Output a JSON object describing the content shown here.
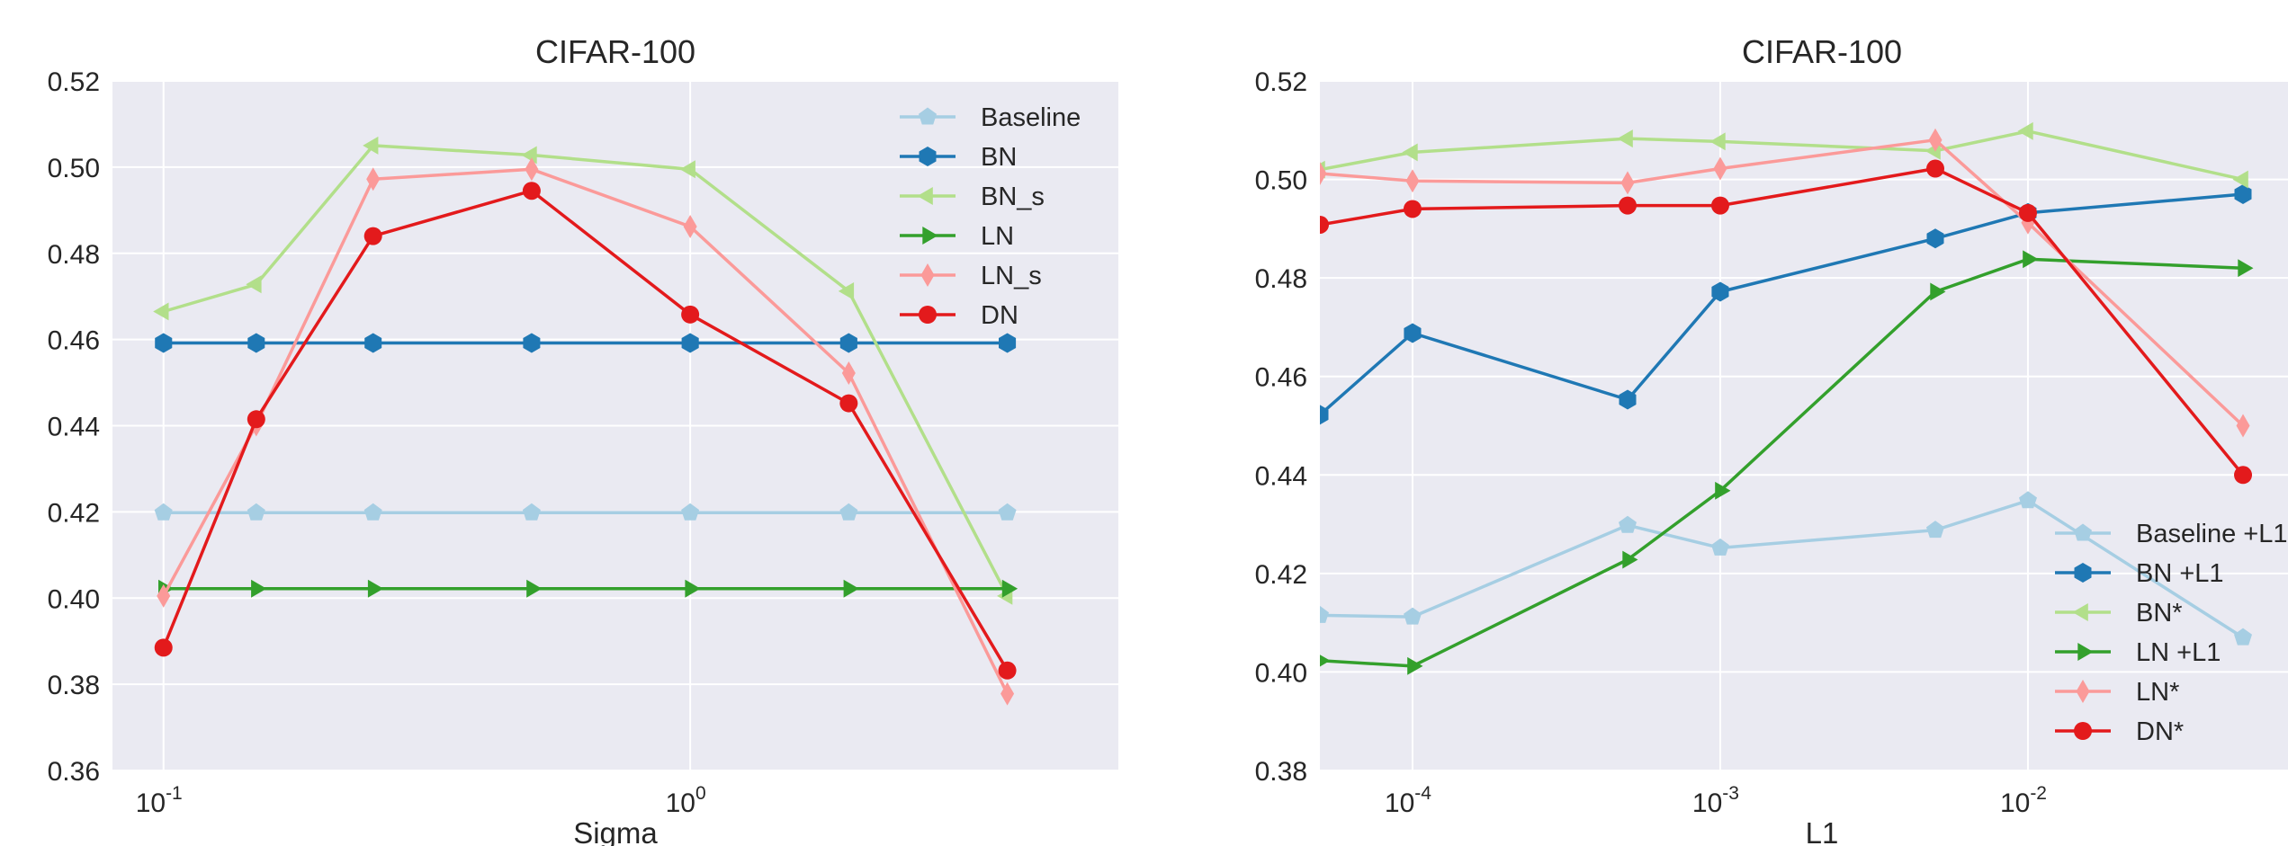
{
  "colors": {
    "background": "#ffffff",
    "plot_area": "#eaeaf2",
    "grid": "#ffffff",
    "text": "#262626"
  },
  "chart_data": [
    {
      "type": "line",
      "title": "CIFAR-100",
      "xlabel": "Sigma",
      "ylabel": "",
      "xscale": "log",
      "xlim": [
        0.08,
        6.5
      ],
      "ylim": [
        0.36,
        0.52
      ],
      "x_tick_values": [
        0.1,
        1
      ],
      "x_tick_labels": [
        {
          "base": "10",
          "exp": "-1"
        },
        {
          "base": "10",
          "exp": "0"
        }
      ],
      "y_ticks": [
        "0.36",
        "0.38",
        "0.40",
        "0.42",
        "0.44",
        "0.46",
        "0.48",
        "0.50",
        "0.52"
      ],
      "grid": true,
      "legend": "top-right",
      "x": [
        0.1,
        0.15,
        0.25,
        0.5,
        1,
        2,
        4
      ],
      "series": [
        {
          "name": "Baseline",
          "color": "#a6cee3",
          "marker": "pentagon",
          "values": [
            0.4198,
            0.4198,
            0.4198,
            0.4198,
            0.4198,
            0.4198,
            0.4198
          ]
        },
        {
          "name": "BN",
          "color": "#1f78b4",
          "marker": "hexagon",
          "values": [
            0.4592,
            0.4592,
            0.4592,
            0.4592,
            0.4592,
            0.4592,
            0.4592
          ]
        },
        {
          "name": "BN_s",
          "color": "#b2df8a",
          "marker": "triangle-left",
          "values": [
            0.4665,
            0.4728,
            0.505,
            0.5028,
            0.4995,
            0.4712,
            0.4005
          ]
        },
        {
          "name": "LN",
          "color": "#33a02c",
          "marker": "triangle-right",
          "values": [
            0.4022,
            0.4022,
            0.4022,
            0.4022,
            0.4022,
            0.4022,
            0.4022
          ]
        },
        {
          "name": "LN_s",
          "color": "#fb9a99",
          "marker": "diamond",
          "values": [
            0.4005,
            0.4402,
            0.4972,
            0.4995,
            0.4862,
            0.4522,
            0.3778
          ]
        },
        {
          "name": "DN",
          "color": "#e31a1c",
          "marker": "circle",
          "values": [
            0.3885,
            0.4415,
            0.484,
            0.4945,
            0.4658,
            0.4452,
            0.3832
          ]
        }
      ]
    },
    {
      "type": "line",
      "title": "CIFAR-100",
      "xlabel": "L1",
      "ylabel": "",
      "xscale": "log",
      "xlim": [
        5e-05,
        0.07
      ],
      "ylim": [
        0.38,
        0.52
      ],
      "x_tick_values": [
        0.0001,
        0.001,
        0.01
      ],
      "x_tick_labels": [
        {
          "base": "10",
          "exp": "-4"
        },
        {
          "base": "10",
          "exp": "-3"
        },
        {
          "base": "10",
          "exp": "-2"
        }
      ],
      "y_ticks": [
        "0.38",
        "0.40",
        "0.42",
        "0.44",
        "0.46",
        "0.48",
        "0.50",
        "0.52"
      ],
      "grid": true,
      "legend": "lower-right",
      "x": [
        5e-05,
        0.0001,
        0.0005,
        0.001,
        0.005,
        0.01,
        0.05
      ],
      "series": [
        {
          "name": "Baseline +L1",
          "color": "#a6cee3",
          "marker": "pentagon",
          "values": [
            0.4115,
            0.4112,
            0.4298,
            0.4252,
            0.4288,
            0.4348,
            0.407
          ]
        },
        {
          "name": "BN +L1",
          "color": "#1f78b4",
          "marker": "hexagon",
          "values": [
            0.4522,
            0.4688,
            0.4553,
            0.4772,
            0.488,
            0.4932,
            0.497
          ]
        },
        {
          "name": "BN*",
          "color": "#b2df8a",
          "marker": "triangle-left",
          "values": [
            0.502,
            0.5055,
            0.5083,
            0.5077,
            0.5058,
            0.5098,
            0.5
          ]
        },
        {
          "name": "LN +L1",
          "color": "#33a02c",
          "marker": "triangle-right",
          "values": [
            0.4023,
            0.4012,
            0.4228,
            0.4368,
            0.4772,
            0.4838,
            0.482
          ]
        },
        {
          "name": "LN*",
          "color": "#fb9a99",
          "marker": "diamond",
          "values": [
            0.5012,
            0.4997,
            0.4993,
            0.5022,
            0.508,
            0.4912,
            0.45
          ]
        },
        {
          "name": "DN*",
          "color": "#e31a1c",
          "marker": "circle",
          "values": [
            0.4908,
            0.494,
            0.4947,
            0.4947,
            0.5022,
            0.4932,
            0.44
          ]
        }
      ]
    }
  ]
}
